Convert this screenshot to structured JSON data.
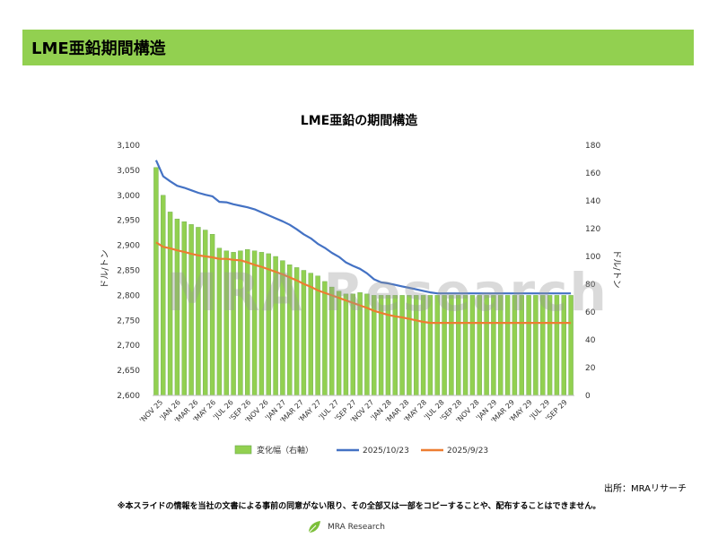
{
  "header": {
    "title": "LME亜鉛期間構造"
  },
  "watermark": "MRA Research",
  "source": "出所：MRAリサーチ",
  "disclaimer": "※本スライドの情報を当社の文書による事前の同意がない限り、その全部又は一部をコピーすることや、配布することはできません。",
  "logo": {
    "text": "MRA Research",
    "icon": "leaf-icon",
    "color": "#7cbf3a"
  },
  "colors": {
    "bar": "#92d050",
    "bar_edge": "#6aa84f",
    "line_1023": "#4472c4",
    "line_923": "#ed7d31"
  },
  "chart_data": {
    "type": "bar",
    "title": "LME亜鉛の期間構造",
    "ylabel_left": "ドル/トン",
    "ylabel_right": "ドル/トン",
    "ylim_left": [
      2600,
      3100
    ],
    "ylim_right": [
      0,
      180
    ],
    "yticks_left": [
      "2,600",
      "2,650",
      "2,700",
      "2,750",
      "2,800",
      "2,850",
      "2,900",
      "2,950",
      "3,000",
      "3,050",
      "3,100"
    ],
    "yticks_right": [
      "0",
      "20",
      "40",
      "60",
      "80",
      "100",
      "120",
      "140",
      "160",
      "180"
    ],
    "xtick_labels": [
      "'NOV 25",
      "'JAN 26",
      "'MAR 26",
      "'MAY 26",
      "'JUL 26",
      "'SEP 26",
      "'NOV 26",
      "'JAN 27",
      "'MAR 27",
      "'MAY 27",
      "'JUL 27",
      "'SEP 27",
      "'NOV 27",
      "'JAN 28",
      "'MAR 28",
      "'MAY 28",
      "'JUL 28",
      "'SEP 28",
      "'NOV 28",
      "'JAN 29",
      "'MAR 29",
      "'MAY 29",
      "'JUL 29",
      "'SEP 29"
    ],
    "legend_position": "bottom",
    "series": [
      {
        "name": "変化幅（右軸）",
        "kind": "bar",
        "axis": "right",
        "values": [
          164,
          144,
          132,
          127,
          125,
          123,
          121,
          119,
          116,
          106,
          104,
          103,
          104,
          105,
          104,
          103,
          102,
          100,
          97,
          94,
          92,
          90,
          88,
          86,
          82,
          78,
          75,
          73,
          73,
          74,
          73,
          72,
          72,
          72,
          72,
          72,
          72,
          72,
          72,
          72,
          72,
          72,
          72,
          72,
          72,
          72,
          72,
          72,
          72,
          72,
          72,
          72,
          72,
          72,
          72,
          72,
          72,
          72,
          72,
          72
        ]
      },
      {
        "name": "2025/10/23",
        "kind": "line",
        "axis": "left",
        "values": [
          3070,
          3038,
          3028,
          3019,
          3015,
          3010,
          3005,
          3001,
          2998,
          2987,
          2986,
          2982,
          2979,
          2976,
          2972,
          2966,
          2960,
          2954,
          2948,
          2941,
          2932,
          2922,
          2914,
          2903,
          2895,
          2885,
          2877,
          2866,
          2859,
          2853,
          2844,
          2832,
          2826,
          2824,
          2821,
          2818,
          2815,
          2812,
          2809,
          2806,
          2804,
          2804,
          2804,
          2804,
          2804,
          2804,
          2804,
          2804,
          2804,
          2804,
          2804,
          2804,
          2804,
          2804,
          2804,
          2804,
          2804,
          2804,
          2804,
          2804
        ]
      },
      {
        "name": "2025/9/23",
        "kind": "line",
        "axis": "left",
        "values": [
          2906,
          2897,
          2894,
          2890,
          2887,
          2883,
          2880,
          2878,
          2876,
          2873,
          2873,
          2871,
          2870,
          2866,
          2861,
          2857,
          2852,
          2847,
          2842,
          2836,
          2830,
          2823,
          2817,
          2810,
          2805,
          2800,
          2795,
          2790,
          2785,
          2780,
          2775,
          2769,
          2765,
          2761,
          2758,
          2756,
          2753,
          2750,
          2747,
          2745,
          2745,
          2745,
          2745,
          2745,
          2745,
          2745,
          2745,
          2745,
          2745,
          2745,
          2745,
          2745,
          2745,
          2745,
          2745,
          2745,
          2745,
          2745,
          2745,
          2745
        ]
      }
    ]
  }
}
